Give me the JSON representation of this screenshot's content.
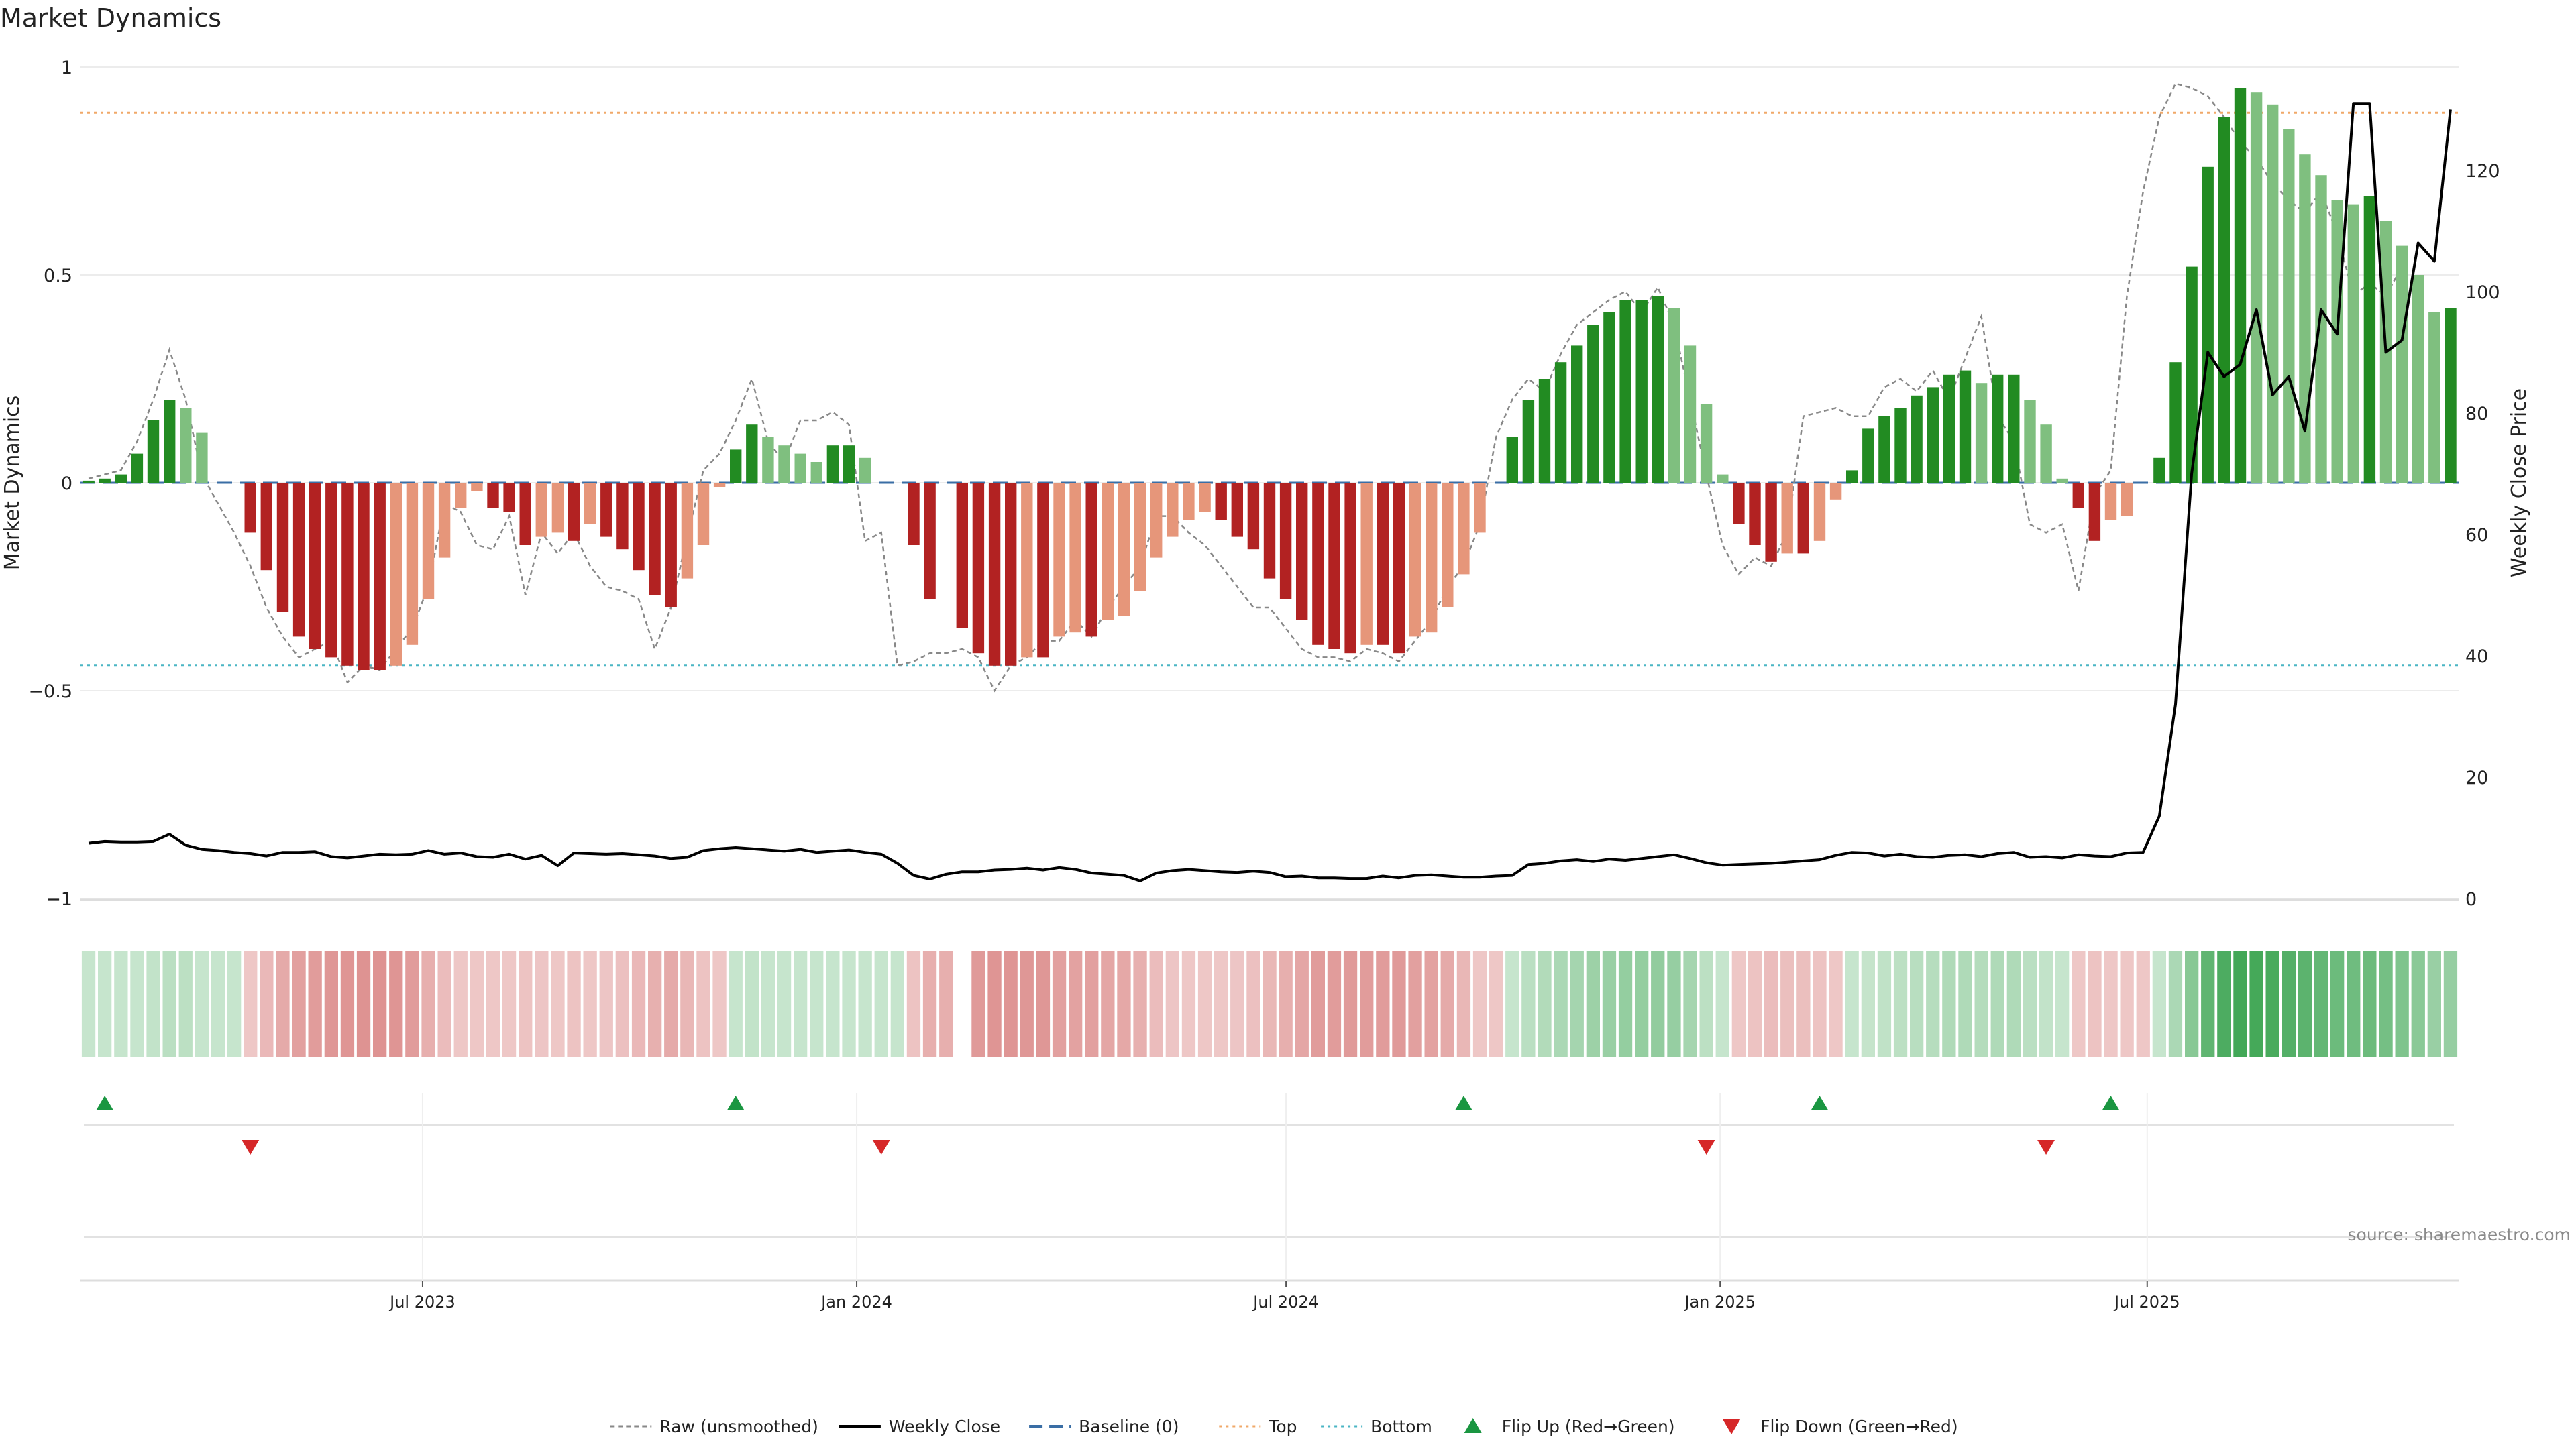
{
  "chart_data": {
    "type": "bar",
    "title": "Market Dynamics",
    "ylabel": "Market Dynamics",
    "y2label": "Weekly Close Price",
    "source": "source: sharemaestro.com",
    "ylim": [
      -1,
      1
    ],
    "y2lim": [
      0,
      137
    ],
    "y_ticks": [
      1,
      0.5,
      0,
      -0.5,
      -1
    ],
    "y_tick_labels": [
      "1",
      "0.5",
      "0",
      "−0.5",
      "−1"
    ],
    "y2_ticks": [
      0,
      20,
      40,
      60,
      80,
      100,
      120
    ],
    "y2_tick_labels": [
      "0",
      "20",
      "40",
      "60",
      "80",
      "100",
      "120"
    ],
    "x_start": "2023-02-06",
    "x_end": "2025-11-10",
    "x_ticks": [
      {
        "date": "2023-07-01",
        "label": "Jul 2023"
      },
      {
        "date": "2024-01-01",
        "label": "Jan 2024"
      },
      {
        "date": "2024-07-01",
        "label": "Jul 2024"
      },
      {
        "date": "2025-01-01",
        "label": "Jan 2025"
      },
      {
        "date": "2025-07-01",
        "label": "Jul 2025"
      }
    ],
    "top_threshold": 0.89,
    "bottom_threshold": -0.44,
    "baseline": 0,
    "grid": true,
    "legend_position": "bottom-center",
    "colors": {
      "green_strong": "#228b22",
      "green_soft": "#7fbf7f",
      "red_strong": "#b22222",
      "red_soft": "#e6967a",
      "top_line": "#f0a868",
      "bottom_line": "#4ab5c4",
      "baseline": "#3a6ea5",
      "close": "#000000",
      "raw": "#888888",
      "flip_up": "#1a9641",
      "flip_down": "#d62728"
    },
    "bars": [
      0.005,
      0.01,
      0.02,
      0.07,
      0.15,
      0.2,
      0.18,
      0.12,
      0,
      0,
      -0.12,
      -0.21,
      -0.31,
      -0.37,
      -0.4,
      -0.42,
      -0.44,
      -0.45,
      -0.45,
      -0.44,
      -0.39,
      -0.28,
      -0.18,
      -0.06,
      -0.02,
      -0.06,
      -0.07,
      -0.15,
      -0.13,
      -0.12,
      -0.14,
      -0.1,
      -0.13,
      -0.16,
      -0.21,
      -0.27,
      -0.3,
      -0.23,
      -0.15,
      -0.01,
      0.08,
      0.14,
      0.11,
      0.09,
      0.07,
      0.05,
      0.09,
      0.09,
      0.06,
      0,
      0,
      -0.15,
      -0.28,
      0,
      -0.35,
      -0.41,
      -0.44,
      -0.44,
      -0.42,
      -0.42,
      -0.37,
      -0.36,
      -0.37,
      -0.33,
      -0.32,
      -0.26,
      -0.18,
      -0.13,
      -0.09,
      -0.07,
      -0.09,
      -0.13,
      -0.16,
      -0.23,
      -0.28,
      -0.33,
      -0.39,
      -0.4,
      -0.41,
      -0.39,
      -0.39,
      -0.41,
      -0.37,
      -0.36,
      -0.3,
      -0.22,
      -0.12,
      0,
      0.11,
      0.2,
      0.25,
      0.29,
      0.33,
      0.38,
      0.41,
      0.44,
      0.44,
      0.45,
      0.42,
      0.33,
      0.19,
      0.02,
      -0.1,
      -0.15,
      -0.19,
      -0.17,
      -0.17,
      -0.14,
      -0.04,
      0.03,
      0.13,
      0.16,
      0.18,
      0.21,
      0.23,
      0.26,
      0.27,
      0.24,
      0.26,
      0.26,
      0.2,
      0.14,
      0.01,
      -0.06,
      -0.14,
      -0.09,
      -0.08,
      0,
      0.06,
      0.29,
      0.52,
      0.76,
      0.88,
      0.95,
      0.94,
      0.91,
      0.85,
      0.79,
      0.74,
      0.68,
      0.67,
      0.69,
      0.63,
      0.57,
      0.5,
      0.41,
      0.42
    ],
    "raw": [
      0.01,
      0.02,
      0.03,
      0.1,
      0.2,
      0.32,
      0.2,
      0.02,
      -0.05,
      -0.12,
      -0.2,
      -0.3,
      -0.37,
      -0.42,
      -0.4,
      -0.38,
      -0.48,
      -0.44,
      -0.45,
      -0.4,
      -0.35,
      -0.25,
      -0.05,
      -0.07,
      -0.15,
      -0.16,
      -0.08,
      -0.27,
      -0.12,
      -0.17,
      -0.12,
      -0.2,
      -0.25,
      -0.26,
      -0.28,
      -0.4,
      -0.3,
      -0.13,
      0.03,
      0.07,
      0.15,
      0.25,
      0.1,
      0.05,
      0.15,
      0.15,
      0.17,
      0.14,
      -0.14,
      -0.12,
      -0.44,
      -0.43,
      -0.41,
      -0.41,
      -0.4,
      -0.42,
      -0.5,
      -0.44,
      -0.42,
      -0.38,
      -0.38,
      -0.33,
      -0.37,
      -0.3,
      -0.25,
      -0.2,
      -0.08,
      -0.08,
      -0.12,
      -0.15,
      -0.2,
      -0.25,
      -0.3,
      -0.3,
      -0.35,
      -0.4,
      -0.42,
      -0.42,
      -0.43,
      -0.4,
      -0.41,
      -0.43,
      -0.38,
      -0.33,
      -0.25,
      -0.2,
      -0.1,
      0.11,
      0.2,
      0.25,
      0.22,
      0.31,
      0.38,
      0.41,
      0.44,
      0.46,
      0.41,
      0.47,
      0.38,
      0.2,
      0.02,
      -0.15,
      -0.22,
      -0.18,
      -0.2,
      -0.12,
      0.16,
      0.17,
      0.18,
      0.16,
      0.16,
      0.23,
      0.25,
      0.22,
      0.27,
      0.2,
      0.3,
      0.4,
      0.16,
      0.1,
      -0.1,
      -0.12,
      -0.1,
      -0.26,
      -0.03,
      0.03,
      0.45,
      0.7,
      0.88,
      0.96,
      0.95,
      0.93,
      0.88,
      0.82,
      0.78,
      0.72,
      0.68,
      0.65,
      0.7,
      0.6,
      0.45,
      0.48,
      0.45,
      0.52
    ],
    "close": [
      9.1,
      9.4,
      9.3,
      9.3,
      9.4,
      10.6,
      8.8,
      8.1,
      7.9,
      7.6,
      7.4,
      7.0,
      7.6,
      7.6,
      7.7,
      6.9,
      6.7,
      7.0,
      7.3,
      7.2,
      7.3,
      7.9,
      7.3,
      7.5,
      6.9,
      6.8,
      7.3,
      6.5,
      7.1,
      5.4,
      7.5,
      7.4,
      7.3,
      7.4,
      7.2,
      7.0,
      6.6,
      6.8,
      7.9,
      8.2,
      8.4,
      8.2,
      8.0,
      7.8,
      8.1,
      7.6,
      7.8,
      8.0,
      7.6,
      7.3,
      5.8,
      3.8,
      3.2,
      4.0,
      4.4,
      4.4,
      4.7,
      4.8,
      5.0,
      4.7,
      5.1,
      4.8,
      4.2,
      4.0,
      3.8,
      2.9,
      4.2,
      4.6,
      4.8,
      4.6,
      4.4,
      4.3,
      4.5,
      4.3,
      3.6,
      3.7,
      3.4,
      3.4,
      3.3,
      3.3,
      3.7,
      3.4,
      3.8,
      3.9,
      3.7,
      3.5,
      3.5,
      3.7,
      3.8,
      5.6,
      5.8,
      6.2,
      6.4,
      6.1,
      6.5,
      6.3,
      6.6,
      6.9,
      7.2,
      6.6,
      5.9,
      5.5,
      5.6,
      5.7,
      5.8,
      6.0,
      6.2,
      6.4,
      7.1,
      7.6,
      7.5,
      7.0,
      7.3,
      6.9,
      6.8,
      7.1,
      7.2,
      6.9,
      7.4,
      7.6,
      6.8,
      6.9,
      6.7,
      7.2,
      7.0,
      6.9,
      7.5,
      7.6,
      13.6,
      32,
      70,
      90,
      86,
      88,
      97,
      83,
      86,
      77,
      97,
      93,
      131,
      131,
      90,
      92,
      108,
      105,
      130
    ],
    "strip_gaps": [
      54
    ],
    "flip_up_weeks": [
      1,
      40,
      85,
      107,
      125
    ],
    "flip_down_weeks": [
      10,
      49,
      100,
      121
    ],
    "legend": [
      {
        "label": "Raw (unsmoothed)",
        "key": "raw"
      },
      {
        "label": "Weekly Close",
        "key": "close"
      },
      {
        "label": "Baseline (0)",
        "key": "baseline"
      },
      {
        "label": "Top",
        "key": "top"
      },
      {
        "label": "Bottom",
        "key": "bottom"
      },
      {
        "label": "Flip Up (Red→Green)",
        "key": "flip_up"
      },
      {
        "label": "Flip Down (Green→Red)",
        "key": "flip_down"
      }
    ]
  }
}
